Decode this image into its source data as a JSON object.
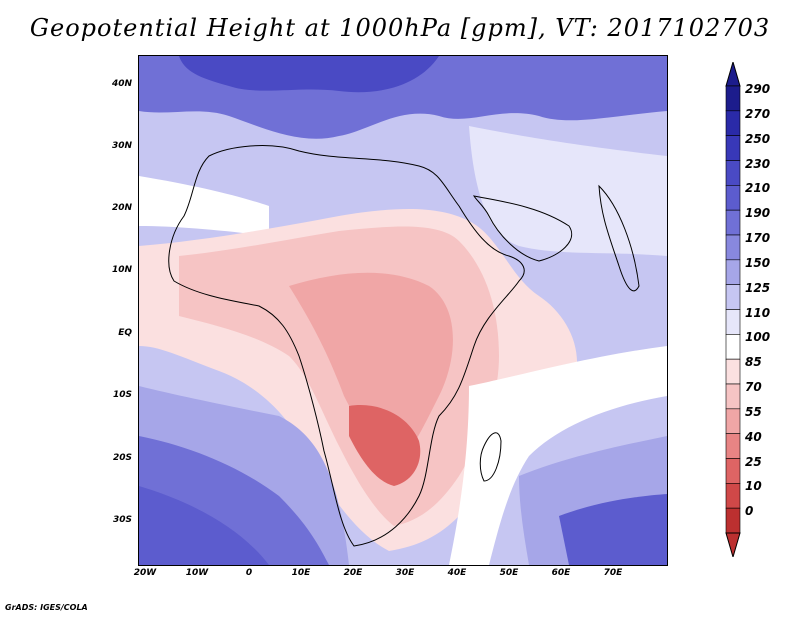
{
  "title": "Geopotential Height at 1000hPa [gpm], VT: 2017102703",
  "footer": "GrADS: IGES/COLA",
  "map": {
    "variable": "Geopotential Height at 1000hPa",
    "units": "gpm",
    "valid_time": "2017102703",
    "lat_labels": [
      "40N",
      "30N",
      "20N",
      "10N",
      "EQ",
      "10S",
      "20S",
      "30S"
    ],
    "lon_labels": [
      "20W",
      "10W",
      "0",
      "10E",
      "20E",
      "30E",
      "40E",
      "50E",
      "60E",
      "70E"
    ]
  },
  "colorbar": {
    "labels": [
      "290",
      "270",
      "250",
      "230",
      "210",
      "190",
      "170",
      "150",
      "125",
      "110",
      "100",
      "85",
      "70",
      "55",
      "40",
      "25",
      "10",
      "0"
    ],
    "colors": [
      "#1c1c8c",
      "#2a2aa8",
      "#3838b8",
      "#4a4ac4",
      "#5c5cce",
      "#7070d6",
      "#8888de",
      "#a6a6e8",
      "#c6c6f2",
      "#e6e6fa",
      "#ffffff",
      "#fbe0e0",
      "#f6c4c4",
      "#f0a6a6",
      "#e88484",
      "#de6464",
      "#d04848",
      "#bc3030"
    ]
  }
}
